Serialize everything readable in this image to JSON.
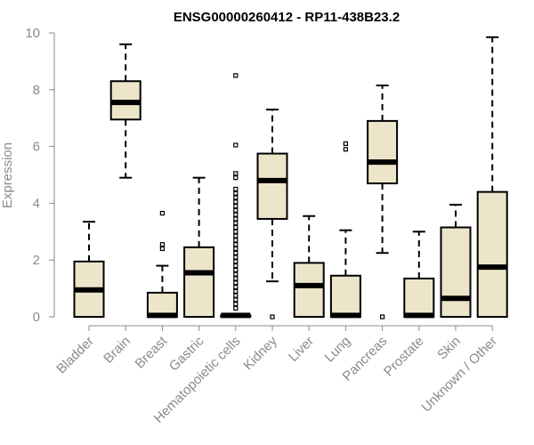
{
  "chart_data": {
    "type": "box",
    "title": "ENSG00000260412 - RP11-438B23.2",
    "xlabel": "",
    "ylabel": "Expression",
    "ylim": [
      0,
      10
    ],
    "yticks": [
      0,
      2,
      4,
      6,
      8,
      10
    ],
    "categories": [
      "Bladder",
      "Brain",
      "Breast",
      "Gastric",
      "Hematopoietic cells",
      "Kidney",
      "Liver",
      "Lung",
      "Pancreas",
      "Prostate",
      "Skin",
      "Unknown / Other"
    ],
    "fill_color": "#ede5c9",
    "boxes": [
      {
        "q1": 0.0,
        "median": 0.95,
        "q3": 1.95,
        "whisker_low": 0.0,
        "whisker_high": 3.35,
        "outliers": []
      },
      {
        "q1": 6.95,
        "median": 7.55,
        "q3": 8.3,
        "whisker_low": 4.9,
        "whisker_high": 9.6,
        "outliers": []
      },
      {
        "q1": 0.0,
        "median": 0.05,
        "q3": 0.85,
        "whisker_low": 0.0,
        "whisker_high": 1.8,
        "outliers": [
          2.4,
          2.55,
          3.65
        ]
      },
      {
        "q1": 0.0,
        "median": 1.55,
        "q3": 2.45,
        "whisker_low": 0.0,
        "whisker_high": 4.9,
        "outliers": []
      },
      {
        "q1": 0.0,
        "median": 0.05,
        "q3": 0.05,
        "whisker_low": 0.0,
        "whisker_high": 0.05,
        "outliers": [
          0.3,
          0.45,
          0.6,
          0.75,
          0.9,
          1.05,
          1.2,
          1.35,
          1.5,
          1.65,
          1.8,
          1.95,
          2.1,
          2.25,
          2.4,
          2.55,
          2.7,
          2.85,
          3.0,
          3.15,
          3.3,
          3.45,
          3.6,
          3.75,
          3.9,
          4.05,
          4.2,
          4.35,
          4.5,
          4.9,
          5.05,
          6.05,
          8.5
        ]
      },
      {
        "q1": 3.45,
        "median": 4.8,
        "q3": 5.75,
        "whisker_low": 1.25,
        "whisker_high": 7.3,
        "outliers": [
          0.0
        ]
      },
      {
        "q1": 0.0,
        "median": 1.1,
        "q3": 1.9,
        "whisker_low": 0.0,
        "whisker_high": 3.55,
        "outliers": []
      },
      {
        "q1": 0.0,
        "median": 0.05,
        "q3": 1.45,
        "whisker_low": 0.0,
        "whisker_high": 3.05,
        "outliers": [
          5.9,
          6.1
        ]
      },
      {
        "q1": 4.7,
        "median": 5.45,
        "q3": 6.9,
        "whisker_low": 2.25,
        "whisker_high": 8.15,
        "outliers": [
          0.0
        ]
      },
      {
        "q1": 0.0,
        "median": 0.05,
        "q3": 1.35,
        "whisker_low": 0.0,
        "whisker_high": 3.0,
        "outliers": []
      },
      {
        "q1": 0.0,
        "median": 0.65,
        "q3": 3.15,
        "whisker_low": 0.0,
        "whisker_high": 3.95,
        "outliers": []
      },
      {
        "q1": 0.0,
        "median": 1.75,
        "q3": 4.4,
        "whisker_low": 0.0,
        "whisker_high": 9.85,
        "outliers": []
      }
    ]
  }
}
